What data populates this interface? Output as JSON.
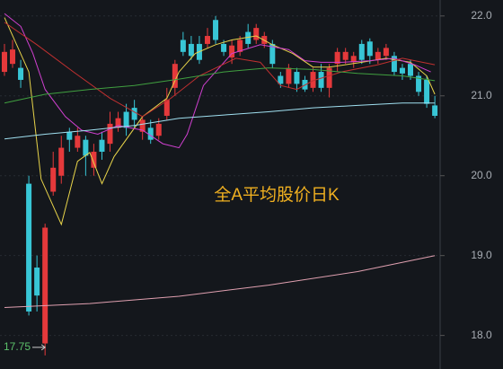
{
  "chart_data": {
    "type": "candlestick",
    "title": "全A平均股价日K",
    "min_label": 17.75,
    "up_color": "#e5393b",
    "down_color": "#38c6d6",
    "xlim": [
      -0.55,
      53.65
    ],
    "ylim": [
      17.58,
      22.2
    ],
    "yticks": [
      {
        "value": 18,
        "label": "18.0"
      },
      {
        "value": 19,
        "label": "19.0"
      },
      {
        "value": 20,
        "label": "20.0"
      },
      {
        "value": 21,
        "label": "21.0"
      },
      {
        "value": 22,
        "label": "22.0"
      }
    ],
    "grid": true,
    "open": [
      21.3,
      21.4,
      21.35,
      19.9,
      18.85,
      17.9,
      19.8,
      20.0,
      20.55,
      20.35,
      20.45,
      20.1,
      20.45,
      20.4,
      20.6,
      20.8,
      20.85,
      20.55,
      20.6,
      20.5,
      20.75,
      21.1,
      21.7,
      21.65,
      21.65,
      21.65,
      21.95,
      21.65,
      21.48,
      21.55,
      21.8,
      21.7,
      21.65,
      21.65,
      21.25,
      21.15,
      21.3,
      21.2,
      21.1,
      21.3,
      21.1,
      21.4,
      21.45,
      21.42,
      21.65,
      21.68,
      21.45,
      21.5,
      21.5,
      21.35,
      21.4,
      21.25,
      21.2,
      20.88
    ],
    "high": [
      21.65,
      21.7,
      21.45,
      20.0,
      19.0,
      19.4,
      20.3,
      20.5,
      20.6,
      20.6,
      20.5,
      20.4,
      20.55,
      20.8,
      20.8,
      20.9,
      20.95,
      20.75,
      20.7,
      20.72,
      21.1,
      21.45,
      21.8,
      21.75,
      21.75,
      21.85,
      22.0,
      21.7,
      21.7,
      21.75,
      21.9,
      21.9,
      21.8,
      21.7,
      21.3,
      21.4,
      21.35,
      21.25,
      21.35,
      21.4,
      21.4,
      21.6,
      21.6,
      21.55,
      21.7,
      21.72,
      21.6,
      21.65,
      21.55,
      21.4,
      21.45,
      21.3,
      21.25,
      21.0
    ],
    "low": [
      21.25,
      21.35,
      21.1,
      18.25,
      18.3,
      17.75,
      19.75,
      19.9,
      20.3,
      20.3,
      20.0,
      20.0,
      20.2,
      20.3,
      20.55,
      20.5,
      20.6,
      20.45,
      20.4,
      20.45,
      20.7,
      21.0,
      21.5,
      21.45,
      21.4,
      21.6,
      21.65,
      21.5,
      21.4,
      21.5,
      21.6,
      21.65,
      21.6,
      21.35,
      21.1,
      21.1,
      21.05,
      21.05,
      21.05,
      21.05,
      20.98,
      21.3,
      21.4,
      21.35,
      21.4,
      21.4,
      21.4,
      21.45,
      21.25,
      21.2,
      21.2,
      21.0,
      20.85,
      20.72
    ],
    "close": [
      21.55,
      21.58,
      21.2,
      18.3,
      18.5,
      19.35,
      20.1,
      20.35,
      20.45,
      20.5,
      20.25,
      20.3,
      20.3,
      20.65,
      20.72,
      20.6,
      20.7,
      20.7,
      20.45,
      20.65,
      20.95,
      21.4,
      21.55,
      21.5,
      21.45,
      21.75,
      21.7,
      21.55,
      21.63,
      21.7,
      21.65,
      21.85,
      21.75,
      21.4,
      21.15,
      21.35,
      21.15,
      21.08,
      21.3,
      21.1,
      21.35,
      21.55,
      21.55,
      21.5,
      21.45,
      21.5,
      21.55,
      21.6,
      21.3,
      21.28,
      21.25,
      21.05,
      20.9,
      20.75
    ],
    "lines": [
      {
        "color": "#e8d44a",
        "x": [
          0,
          3,
          4.5,
          7,
          9,
          10.5,
          12,
          13.5,
          17,
          20,
          21.5,
          23.5,
          26,
          28,
          31,
          33,
          35.5,
          38,
          40,
          44,
          47,
          50,
          52,
          53
        ],
        "values": [
          21.98,
          21.3,
          19.96,
          19.39,
          20.18,
          20.29,
          19.9,
          20.24,
          20.74,
          20.97,
          21.3,
          21.53,
          21.64,
          21.7,
          21.75,
          21.64,
          21.53,
          21.36,
          21.36,
          21.42,
          21.47,
          21.42,
          21.25,
          21.02
        ]
      },
      {
        "color": "#d040d0",
        "x": [
          0,
          2,
          3.5,
          5,
          7.5,
          9.5,
          11.5,
          14,
          17,
          19.5,
          21.5,
          22.5,
          24.5,
          28,
          31.5,
          35,
          37,
          39,
          41.5,
          45,
          48,
          50.5,
          52.5
        ],
        "values": [
          22.03,
          21.87,
          21.53,
          21.08,
          20.74,
          20.57,
          20.52,
          20.63,
          20.57,
          20.4,
          20.35,
          20.52,
          21.13,
          21.53,
          21.64,
          21.58,
          21.44,
          21.42,
          21.42,
          21.44,
          21.47,
          21.39,
          21.3
        ]
      },
      {
        "color": "#c03030",
        "x": [
          0,
          4,
          8.5,
          13,
          17,
          20.5,
          24,
          28.5,
          31.5,
          34,
          36,
          38,
          41.5,
          46,
          49,
          53
        ],
        "values": [
          21.92,
          21.64,
          21.3,
          20.97,
          20.74,
          20.97,
          21.25,
          21.47,
          21.42,
          21.13,
          21.08,
          21.19,
          21.3,
          21.39,
          21.47,
          21.39
        ]
      },
      {
        "color": "#40a040",
        "x": [
          0,
          5,
          10.5,
          16,
          21.5,
          27,
          32.5,
          38,
          43.5,
          49,
          53
        ],
        "values": [
          20.91,
          21.02,
          21.08,
          21.13,
          21.21,
          21.3,
          21.35,
          21.33,
          21.28,
          21.25,
          21.19
        ]
      },
      {
        "color": "#a0e0f0",
        "x": [
          0,
          5,
          10.5,
          16,
          21.5,
          27,
          32.5,
          38,
          43.5,
          49,
          53
        ],
        "values": [
          20.46,
          20.52,
          20.57,
          20.63,
          20.72,
          20.76,
          20.8,
          20.85,
          20.88,
          20.91,
          20.91
        ]
      },
      {
        "color": "#e0a0b0",
        "x": [
          0,
          10.5,
          21.5,
          32.5,
          43.5,
          53
        ],
        "values": [
          18.35,
          18.4,
          18.49,
          18.63,
          18.8,
          19.0
        ]
      }
    ]
  }
}
